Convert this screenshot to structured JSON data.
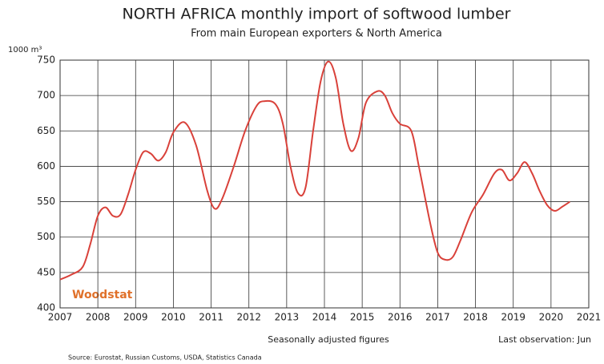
{
  "chart_data": {
    "type": "line",
    "title": "NORTH AFRICA  monthly import of softwood lumber",
    "subtitle": "From main European exporters & North America",
    "y_label": "1000 m³",
    "annotations": [
      "Woodstat",
      "Seasonally adjusted figures",
      "Last observation: Jun",
      "Source: Eurostat, Russian Customs, USDA, Statistics Canada"
    ],
    "x": [
      2007.0,
      2007.3,
      2007.6,
      2007.8,
      2008.0,
      2008.2,
      2008.4,
      2008.6,
      2008.8,
      2009.0,
      2009.2,
      2009.4,
      2009.6,
      2009.8,
      2010.0,
      2010.3,
      2010.6,
      2010.9,
      2011.1,
      2011.3,
      2011.6,
      2011.9,
      2012.2,
      2012.4,
      2012.7,
      2012.9,
      2013.1,
      2013.3,
      2013.5,
      2013.7,
      2013.9,
      2014.1,
      2014.3,
      2014.5,
      2014.7,
      2014.9,
      2015.1,
      2015.4,
      2015.6,
      2015.8,
      2016.0,
      2016.3,
      2016.5,
      2016.8,
      2017.0,
      2017.2,
      2017.4,
      2017.6,
      2017.9,
      2018.2,
      2018.5,
      2018.7,
      2018.9,
      2019.1,
      2019.3,
      2019.5,
      2019.7,
      2019.9,
      2020.1,
      2020.3,
      2020.5
    ],
    "series": [
      {
        "color": "#d9413a",
        "values": [
          440,
          447,
          458,
          490,
          530,
          542,
          530,
          532,
          560,
          595,
          620,
          618,
          608,
          620,
          648,
          662,
          630,
          565,
          540,
          555,
          600,
          650,
          685,
          692,
          688,
          660,
          600,
          562,
          570,
          650,
          720,
          748,
          725,
          660,
          622,
          640,
          690,
          706,
          700,
          675,
          660,
          650,
          600,
          520,
          478,
          468,
          472,
          495,
          535,
          560,
          590,
          595,
          580,
          590,
          606,
          590,
          565,
          545,
          537,
          543,
          550
        ]
      }
    ],
    "xlim": [
      2007,
      2021
    ],
    "xticks": [
      2007,
      2008,
      2009,
      2010,
      2011,
      2012,
      2013,
      2014,
      2015,
      2016,
      2017,
      2018,
      2019,
      2020,
      2021
    ],
    "ylim": [
      400,
      750
    ],
    "yticks": [
      400,
      450,
      500,
      550,
      600,
      650,
      700,
      750
    ],
    "grid": true,
    "bold_gridline": 600
  }
}
